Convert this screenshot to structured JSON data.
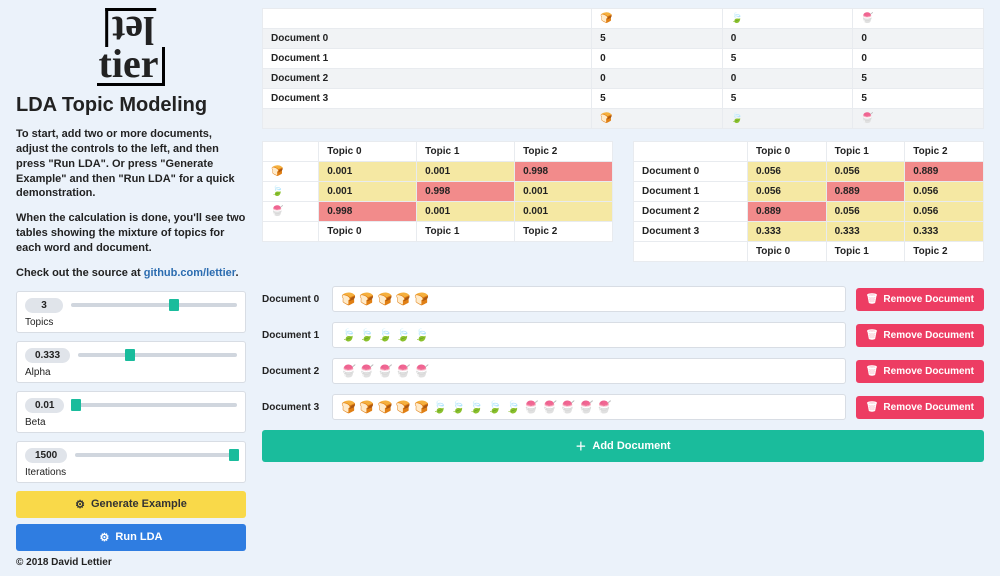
{
  "header": {
    "title": "LDA Topic Modeling",
    "intro1": "To start, add two or more documents, adjust the controls to the left, and then press \"Run LDA\". Or press \"Generate Example\" and then \"Run LDA\" for a quick demonstration.",
    "intro2": "When the calculation is done, you'll see two tables showing the mixture of topics for each word and document.",
    "intro3_prefix": "Check out the source at ",
    "intro3_link": "github.com/lettier",
    "intro3_suffix": "."
  },
  "sliders": [
    {
      "label": "Topics",
      "value": "3",
      "pos_pct": 62
    },
    {
      "label": "Alpha",
      "value": "0.333",
      "pos_pct": 33
    },
    {
      "label": "Beta",
      "value": "0.01",
      "pos_pct": 2
    },
    {
      "label": "Iterations",
      "value": "1500",
      "pos_pct": 98
    }
  ],
  "buttons": {
    "generate": "Generate Example",
    "run": "Run LDA",
    "add": "Add Document",
    "remove": "Remove Document"
  },
  "copyright": "© 2018 David Lettier",
  "icons": {
    "bread": "🍞",
    "leaf": "🍃",
    "ice": "🍧"
  },
  "colors": {
    "hl_yellow": "#f5e8a3",
    "hl_red": "#f28b8b"
  },
  "count_table": {
    "cols": [
      "bread",
      "leaf",
      "ice"
    ],
    "rows": [
      {
        "label": "Document 0",
        "vals": [
          "5",
          "0",
          "0"
        ],
        "zebra": false
      },
      {
        "label": "Document 1",
        "vals": [
          "0",
          "5",
          "0"
        ],
        "zebra": true
      },
      {
        "label": "Document 2",
        "vals": [
          "0",
          "0",
          "5"
        ],
        "zebra": false
      },
      {
        "label": "Document 3",
        "vals": [
          "5",
          "5",
          "5"
        ],
        "zebra": true
      }
    ]
  },
  "topic_word": {
    "topics": [
      "Topic 0",
      "Topic 1",
      "Topic 2"
    ],
    "rows": [
      {
        "icon": "bread",
        "vals": [
          "0.001",
          "0.001",
          "0.998"
        ],
        "hl": [
          "y",
          "y",
          "r"
        ]
      },
      {
        "icon": "leaf",
        "vals": [
          "0.001",
          "0.998",
          "0.001"
        ],
        "hl": [
          "y",
          "r",
          "y"
        ]
      },
      {
        "icon": "ice",
        "vals": [
          "0.998",
          "0.001",
          "0.001"
        ],
        "hl": [
          "r",
          "y",
          "y"
        ]
      }
    ]
  },
  "doc_topic": {
    "topics": [
      "Topic 0",
      "Topic 1",
      "Topic 2"
    ],
    "rows": [
      {
        "label": "Document 0",
        "vals": [
          "0.056",
          "0.056",
          "0.889"
        ],
        "hl": [
          "y",
          "y",
          "r"
        ]
      },
      {
        "label": "Document 1",
        "vals": [
          "0.056",
          "0.889",
          "0.056"
        ],
        "hl": [
          "y",
          "r",
          "y"
        ]
      },
      {
        "label": "Document 2",
        "vals": [
          "0.889",
          "0.056",
          "0.056"
        ],
        "hl": [
          "r",
          "y",
          "y"
        ]
      },
      {
        "label": "Document 3",
        "vals": [
          "0.333",
          "0.333",
          "0.333"
        ],
        "hl": [
          "y",
          "y",
          "y"
        ]
      }
    ]
  },
  "documents": [
    {
      "label": "Document 0",
      "content": "🍞 🍞 🍞 🍞 🍞"
    },
    {
      "label": "Document 1",
      "content": "🍃 🍃 🍃 🍃 🍃"
    },
    {
      "label": "Document 2",
      "content": "🍧 🍧 🍧 🍧 🍧"
    },
    {
      "label": "Document 3",
      "content": "🍞 🍞 🍞 🍞 🍞 🍃 🍃 🍃 🍃 🍃 🍧 🍧 🍧 🍧 🍧"
    }
  ]
}
